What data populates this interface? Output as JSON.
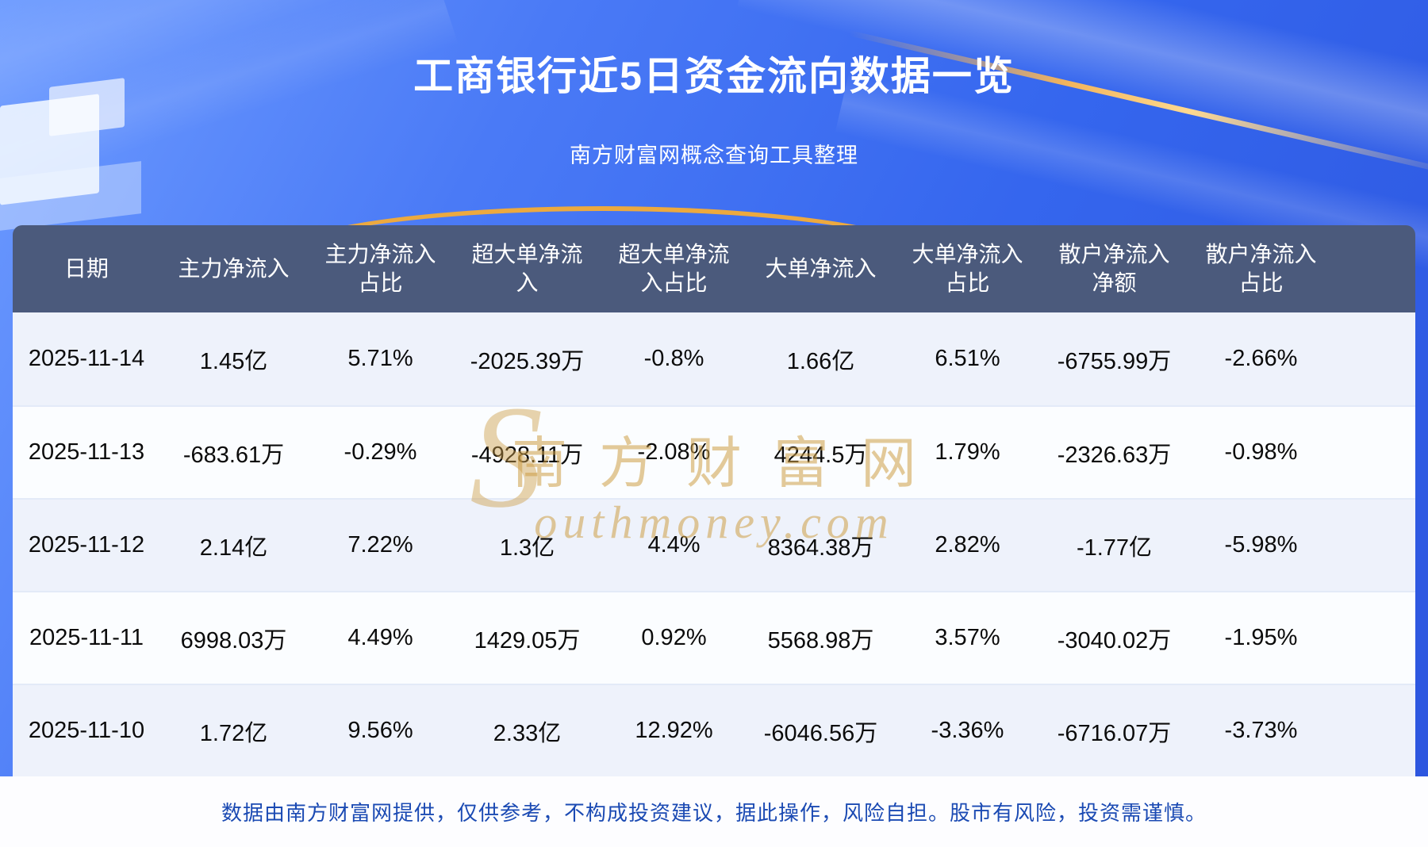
{
  "page": {
    "title": "工商银行近5日资金流向数据一览",
    "subtitle": "南方财富网概念查询工具整理",
    "footer_note": "数据由南方财富网提供，仅供参考，不构成投资建议，据此操作，风险自担。股市有风险，投资需谨慎。",
    "watermark": {
      "initial": "S",
      "cn": "南方财富网",
      "en": "outhmoney.com"
    }
  },
  "colors": {
    "background_top": "#6d9bff",
    "background_bottom": "#2c55de",
    "header_bg": "#4b5a7c",
    "row_odd": "#eef2fb",
    "row_even": "#fbfdff",
    "gold_accent": "#eca93f",
    "footer_text": "#1b4ab3",
    "title_text": "#ffffff"
  },
  "table": {
    "headers_display": [
      "日期",
      "主力净流入",
      "主力净流入\n占比",
      "超大单净流\n入",
      "超大单净流\n入占比",
      "大单净流入",
      "大单净流入\n占比",
      "散户净流入\n净额",
      "散户净流入\n占比"
    ]
  },
  "chart_data": {
    "type": "table",
    "title": "工商银行近5日资金流向数据一览",
    "columns": [
      "日期",
      "主力净流入",
      "主力净流入占比",
      "超大单净流入",
      "超大单净流入占比",
      "大单净流入",
      "大单净流入占比",
      "散户净流入净额",
      "散户净流入占比"
    ],
    "rows": [
      [
        "2025-11-14",
        "1.45亿",
        "5.71%",
        "-2025.39万",
        "-0.8%",
        "1.66亿",
        "6.51%",
        "-6755.99万",
        "-2.66%"
      ],
      [
        "2025-11-13",
        "-683.61万",
        "-0.29%",
        "-4928.11万",
        "-2.08%",
        "4244.5万",
        "1.79%",
        "-2326.63万",
        "-0.98%"
      ],
      [
        "2025-11-12",
        "2.14亿",
        "7.22%",
        "1.3亿",
        "4.4%",
        "8364.38万",
        "2.82%",
        "-1.77亿",
        "-5.98%"
      ],
      [
        "2025-11-11",
        "6998.03万",
        "4.49%",
        "1429.05万",
        "0.92%",
        "5568.98万",
        "3.57%",
        "-3040.02万",
        "-1.95%"
      ],
      [
        "2025-11-10",
        "1.72亿",
        "9.56%",
        "2.33亿",
        "12.92%",
        "-6046.56万",
        "-3.36%",
        "-6716.07万",
        "-3.73%"
      ]
    ]
  }
}
